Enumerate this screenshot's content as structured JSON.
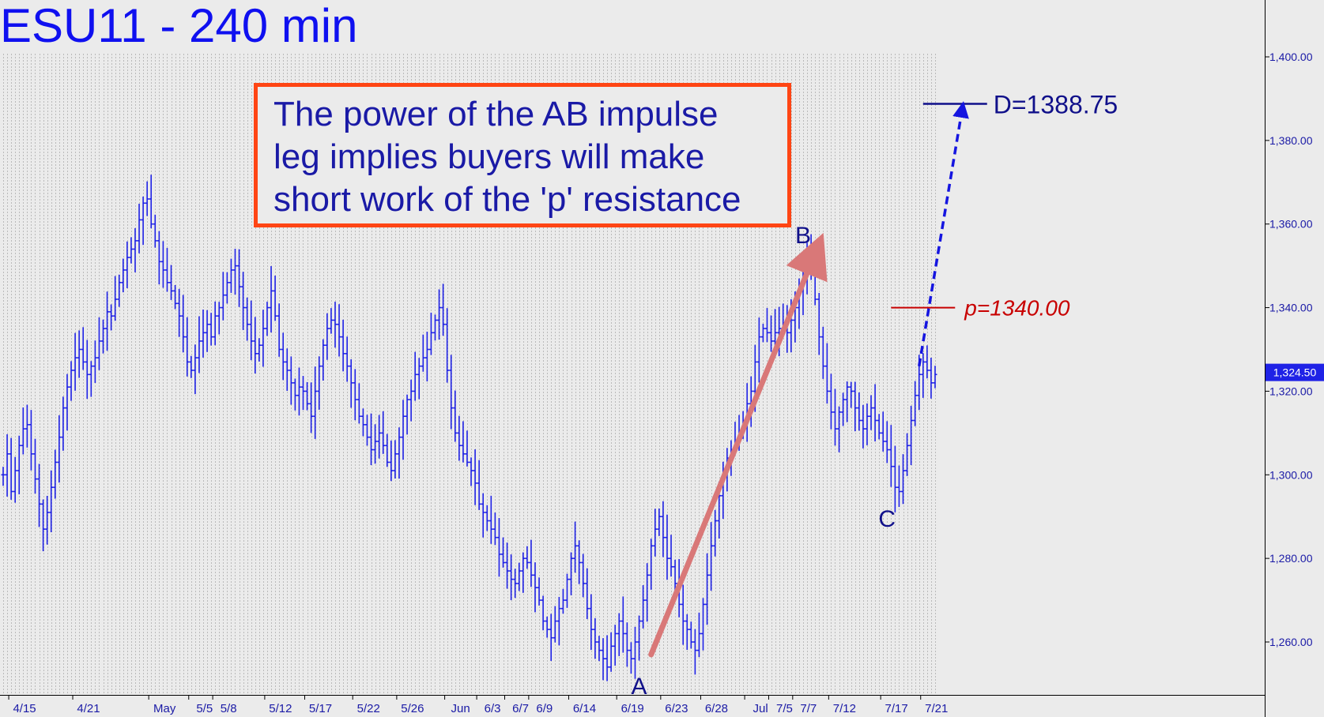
{
  "title": "ESU11 - 240 min",
  "callout": {
    "lines": [
      "The power of the AB impulse",
      "leg implies buyers will make",
      "short work of the 'p' resistance"
    ]
  },
  "colors": {
    "background": "#ebebeb",
    "bars": "#1f22e6",
    "title": "#0f10f0",
    "callout_border": "#ff4514",
    "callout_text": "#1a1aa6",
    "impulse_arrow": "#d97878",
    "p_line": "#c80000",
    "d_line": "#10108a",
    "projection": "#1515e0",
    "grid": "#9a9a9a"
  },
  "chart_data": {
    "type": "ohlc",
    "symbol": "ESU11",
    "interval": "240 min",
    "ylim": [
      1250,
      1415
    ],
    "y_ticks": [
      1260,
      1280,
      1300,
      1320,
      1340,
      1360,
      1380,
      1400
    ],
    "y_tick_labels": [
      "1,260.00",
      "1,280.00",
      "1,300.00",
      "1,320.00",
      "1,340.00",
      "1,360.00",
      "1,380.00",
      "1,400.00"
    ],
    "x_tick_labels": [
      "4/15",
      "4/21",
      "May",
      "5/5",
      "5/8",
      "5/12",
      "5/17",
      "5/22",
      "5/26",
      "Jun",
      "6/3",
      "6/7",
      "6/9",
      "6/14",
      "6/19",
      "6/23",
      "6/28",
      "Jul",
      "7/5",
      "7/7",
      "7/12",
      "7/17",
      "7/21"
    ],
    "x_tick_bar_index": [
      1,
      17,
      36,
      46,
      52,
      65,
      75,
      87,
      98,
      110,
      118,
      125,
      131,
      141,
      153,
      164,
      174,
      185,
      191,
      197,
      206,
      219,
      229
    ],
    "last_price": 1324.5,
    "last_price_label": "1,324.50",
    "closes": [
      1300,
      1305,
      1296,
      1301,
      1307,
      1311,
      1312,
      1305,
      1299,
      1293,
      1287,
      1291,
      1297,
      1303,
      1309,
      1316,
      1321,
      1325,
      1328,
      1330,
      1327,
      1324,
      1326,
      1328,
      1332,
      1335,
      1339,
      1338,
      1342,
      1346,
      1349,
      1352,
      1354,
      1356,
      1361,
      1365,
      1366,
      1360,
      1356,
      1351,
      1349,
      1346,
      1344,
      1341,
      1338,
      1333,
      1327,
      1325,
      1328,
      1332,
      1334,
      1336,
      1333,
      1338,
      1340,
      1343,
      1346,
      1349,
      1350,
      1345,
      1340,
      1336,
      1332,
      1329,
      1331,
      1335,
      1340,
      1344,
      1338,
      1330,
      1327,
      1325,
      1322,
      1319,
      1321,
      1320,
      1317,
      1314,
      1320,
      1326,
      1331,
      1335,
      1337,
      1336,
      1333,
      1329,
      1326,
      1322,
      1318,
      1314,
      1312,
      1309,
      1306,
      1308,
      1310,
      1307,
      1303,
      1301,
      1305,
      1309,
      1314,
      1318,
      1320,
      1324,
      1326,
      1328,
      1330,
      1334,
      1337,
      1340,
      1336,
      1325,
      1316,
      1310,
      1307,
      1305,
      1303,
      1301,
      1298,
      1293,
      1291,
      1289,
      1287,
      1285,
      1281,
      1279,
      1277,
      1275,
      1274,
      1277,
      1280,
      1279,
      1276,
      1273,
      1270,
      1265,
      1263,
      1261,
      1265,
      1268,
      1270,
      1275,
      1280,
      1283,
      1279,
      1274,
      1268,
      1263,
      1260,
      1258,
      1256,
      1254,
      1259,
      1262,
      1265,
      1262,
      1258,
      1256,
      1260,
      1265,
      1270,
      1276,
      1283,
      1287,
      1290,
      1285,
      1280,
      1278,
      1274,
      1269,
      1265,
      1263,
      1260,
      1258,
      1262,
      1269,
      1276,
      1283,
      1289,
      1295,
      1301,
      1304,
      1306,
      1308,
      1310,
      1313,
      1317,
      1320,
      1327,
      1333,
      1335,
      1334,
      1332,
      1334,
      1335,
      1336,
      1334,
      1337,
      1340,
      1344,
      1349,
      1352,
      1350,
      1342,
      1333,
      1326,
      1320,
      1315,
      1311,
      1315,
      1318,
      1321,
      1320,
      1316,
      1313,
      1311,
      1314,
      1316,
      1313,
      1310,
      1308,
      1306,
      1302,
      1297,
      1296,
      1301,
      1307,
      1313,
      1319,
      1324,
      1327,
      1325,
      1322,
      1324
    ],
    "annotations": {
      "point_labels": [
        {
          "text": "A",
          "bar": 159,
          "price": 1254
        },
        {
          "text": "B",
          "bar": 200,
          "price": 1352
        },
        {
          "text": "C",
          "bar": 221,
          "price": 1294
        }
      ],
      "impulse_arrow": {
        "from": {
          "bar": 162,
          "price": 1257
        },
        "to": {
          "bar": 203,
          "price": 1353
        }
      },
      "p_level": {
        "label": "p=1340.00",
        "value": 1340.0,
        "bar_start": 222,
        "bar_end": 238
      },
      "d_target": {
        "label": "D=1388.75",
        "value": 1388.75,
        "bar_start": 230,
        "bar_end": 246
      },
      "projection": {
        "from": {
          "bar": 229,
          "price": 1326
        },
        "to": {
          "bar": 240,
          "price": 1388.75
        }
      }
    }
  }
}
